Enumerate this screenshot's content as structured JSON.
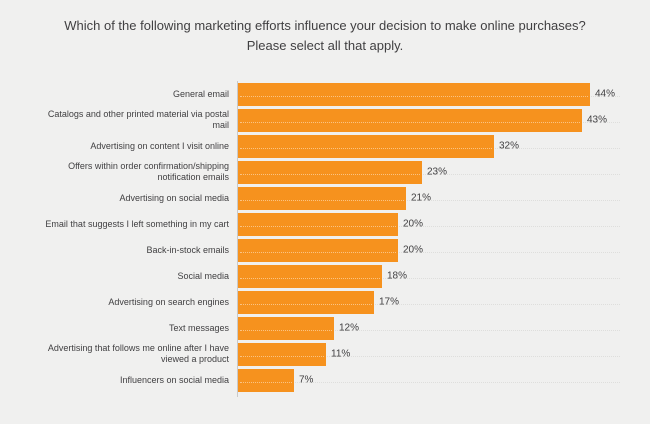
{
  "header": {
    "line1": "Which of the following marketing efforts influence your decision to make online purchases?",
    "line2": "Please select all that apply."
  },
  "chart_data": {
    "type": "bar",
    "orientation": "horizontal",
    "title": "Which of the following marketing efforts influence your decision to make online purchases? Please select all that apply.",
    "categories": [
      "General email",
      "Catalogs and other printed material via postal mail",
      "Advertising on content I visit online",
      "Offers within order confirmation/shipping notification emails",
      "Advertising on social media",
      "Email that suggests I left something in my cart",
      "Back-in-stock emails",
      "Social media",
      "Advertising on search engines",
      "Text messages",
      "Advertising that follows me online after I have viewed a product",
      "Influencers on social media"
    ],
    "values": [
      44,
      43,
      32,
      23,
      21,
      20,
      20,
      18,
      17,
      12,
      11,
      7
    ],
    "value_suffix": "%",
    "value_label_position": "outside-end",
    "xlim": [
      0,
      48
    ],
    "xlabel": "",
    "ylabel": "",
    "legend": "none",
    "grid": "dotted-row-lines",
    "bar_color": "#f6921e",
    "background_color": "#f0f0ef",
    "text_color": "#414042",
    "axis_color": "#c9c9c9"
  }
}
